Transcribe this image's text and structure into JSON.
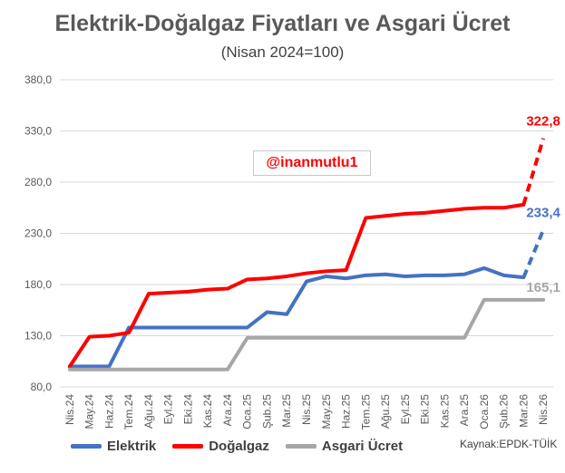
{
  "chart_data": {
    "type": "line",
    "title": "Elektrik-Doğalgaz Fiyatları ve Asgari Ücret",
    "subtitle": "(Nisan 2024=100)",
    "ylim": [
      80,
      380
    ],
    "yticks": [
      80,
      130,
      180,
      230,
      280,
      330,
      380
    ],
    "ytick_labels": [
      "80,0",
      "130,0",
      "180,0",
      "230,0",
      "280,0",
      "330,0",
      "380,0"
    ],
    "grid": true,
    "legend_position": "bottom",
    "categories": [
      "Nis.24",
      "May.24",
      "Haz.24",
      "Tem.24",
      "Ağu.24",
      "Eyl.24",
      "Eki.24",
      "Kas.24",
      "Ara.24",
      "Oca.25",
      "Şub.25",
      "Mar.25",
      "Nis.25",
      "May.25",
      "Haz.25",
      "Tem.25",
      "Ağu.25",
      "Eyl.25",
      "Eki.25",
      "Kas.25",
      "Ara.25",
      "Oca.26",
      "Şub.26",
      "Mar.26",
      "Nis.26"
    ],
    "series": [
      {
        "name": "Elektrik",
        "color": "#4472c4",
        "values": [
          100,
          100,
          100,
          138,
          138,
          138,
          138,
          138,
          138,
          138,
          153,
          151,
          183,
          188,
          186,
          189,
          190,
          188,
          189,
          189,
          190,
          196,
          189,
          187,
          233.4
        ],
        "projected_last": true,
        "end_label": "233,4"
      },
      {
        "name": "Doğalgaz",
        "color": "#ff0000",
        "values": [
          100,
          129,
          130,
          133,
          171,
          172,
          173,
          175,
          176,
          185,
          186,
          188,
          191,
          193,
          194,
          245,
          247,
          249,
          250,
          252,
          254,
          255,
          255,
          258,
          322.8
        ],
        "projected_last": true,
        "end_label": "322,8"
      },
      {
        "name": "Asgari Ücret",
        "color": "#a6a6a6",
        "values": [
          97,
          97,
          97,
          97,
          97,
          97,
          97,
          97,
          97,
          128,
          128,
          128,
          128,
          128,
          128,
          128,
          128,
          128,
          128,
          128,
          128,
          165.1,
          165.1,
          165.1,
          165.1
        ],
        "projected_last": false,
        "end_label": "165,1"
      }
    ]
  },
  "watermark": "@inanmutlu1",
  "source": "Kaynak:EPDK-TÜİK"
}
